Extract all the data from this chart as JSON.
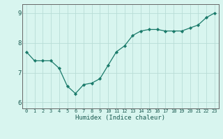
{
  "x": [
    0,
    1,
    2,
    3,
    4,
    5,
    6,
    7,
    8,
    9,
    10,
    11,
    12,
    13,
    14,
    15,
    16,
    17,
    18,
    19,
    20,
    21,
    22,
    23
  ],
  "y": [
    7.7,
    7.4,
    7.4,
    7.4,
    7.15,
    6.55,
    6.3,
    6.6,
    6.65,
    6.8,
    7.25,
    7.7,
    7.9,
    8.25,
    8.4,
    8.45,
    8.45,
    8.4,
    8.4,
    8.4,
    8.5,
    8.6,
    8.85,
    9.0
  ],
  "xlabel": "Humidex (Indice chaleur)",
  "ylim": [
    5.8,
    9.3
  ],
  "xlim": [
    -0.5,
    23.5
  ],
  "yticks": [
    6,
    7,
    8,
    9
  ],
  "xticks": [
    0,
    1,
    2,
    3,
    4,
    5,
    6,
    7,
    8,
    9,
    10,
    11,
    12,
    13,
    14,
    15,
    16,
    17,
    18,
    19,
    20,
    21,
    22,
    23
  ],
  "line_color": "#1a7a6a",
  "marker_color": "#1a7a6a",
  "bg_color": "#d8f5ef",
  "grid_color": "#b8ddd6",
  "axis_color": "#666666",
  "tick_label_color": "#1a5a50"
}
